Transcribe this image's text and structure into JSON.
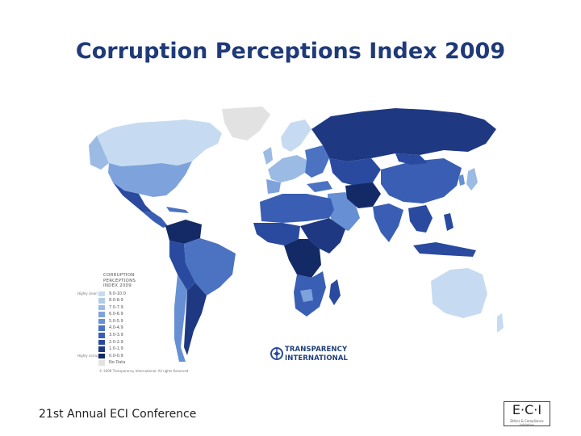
{
  "title": "Corruption Perceptions Index 2009",
  "footer": "21st Annual ECI Conference",
  "legend": {
    "title_lines": [
      "CORRUPTION",
      "PERCEPTIONS",
      "INDEX 2009"
    ],
    "end_high": "Highly clean",
    "end_low": "Highly corrupt",
    "items": [
      {
        "label": "9.0-10.0",
        "color": "#c6dbf1"
      },
      {
        "label": "8.0-8.9",
        "color": "#b3cbea"
      },
      {
        "label": "7.0-7.9",
        "color": "#9bbbe4"
      },
      {
        "label": "6.0-6.9",
        "color": "#7ea3dc"
      },
      {
        "label": "5.0-5.9",
        "color": "#6690d3"
      },
      {
        "label": "4.0-4.9",
        "color": "#4b73c2"
      },
      {
        "label": "3.0-3.9",
        "color": "#3a5eb3"
      },
      {
        "label": "2.0-2.9",
        "color": "#2a4aa0"
      },
      {
        "label": "1.0-1.9",
        "color": "#1e3882"
      },
      {
        "label": "0.0-0.9",
        "color": "#142a66"
      },
      {
        "label": "No Data",
        "color": "#e2e2e2"
      }
    ]
  },
  "copyright": "© 2009 Transparency International. All rights Reserved.",
  "ti_logo": {
    "line1": "TRANSPARENCY",
    "line2": "INTERNATIONAL"
  },
  "eci_logo": {
    "main": "E·C·I",
    "sub": "Ethics & Compliance Initiative"
  },
  "colors": {
    "title": "#1f3a78",
    "nodata": "#e2e2e2"
  }
}
